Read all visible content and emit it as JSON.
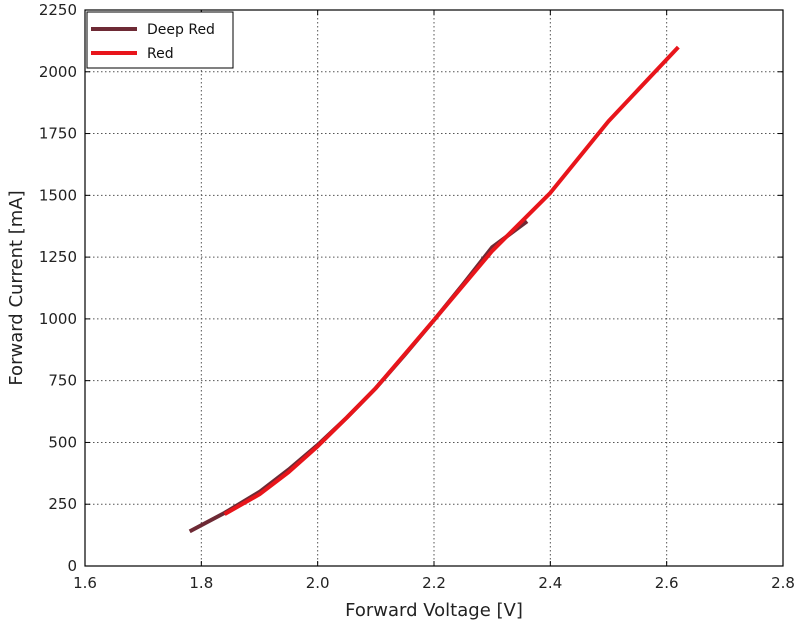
{
  "chart_data": {
    "type": "line",
    "title": "",
    "xlabel": "Forward Voltage [V]",
    "ylabel": "Forward Current [mA]",
    "xlim": [
      1.6,
      2.8
    ],
    "ylim": [
      0,
      2250
    ],
    "xticks": [
      1.6,
      1.8,
      2.0,
      2.2,
      2.4,
      2.6,
      2.8
    ],
    "xtick_labels": [
      "1.6",
      "1.8",
      "2.0",
      "2.2",
      "2.4",
      "2.6",
      "2.8"
    ],
    "yticks": [
      0,
      250,
      500,
      750,
      1000,
      1250,
      1500,
      1750,
      2000,
      2250
    ],
    "ytick_labels": [
      "0",
      "250",
      "500",
      "750",
      "1000",
      "1250",
      "1500",
      "1750",
      "2000",
      "2250"
    ],
    "grid": true,
    "legend_position": "top-left",
    "series": [
      {
        "name": "Deep Red",
        "color": "#6e2a35",
        "x": [
          1.78,
          1.84,
          1.9,
          1.95,
          2.0,
          2.05,
          2.1,
          2.15,
          2.2,
          2.25,
          2.3,
          2.36
        ],
        "y": [
          140,
          215,
          300,
          390,
          490,
          600,
          720,
          855,
          995,
          1140,
          1290,
          1395
        ]
      },
      {
        "name": "Red",
        "color": "#e8151b",
        "x": [
          1.84,
          1.9,
          1.95,
          2.0,
          2.05,
          2.1,
          2.2,
          2.3,
          2.4,
          2.5,
          2.62
        ],
        "y": [
          210,
          290,
          380,
          485,
          600,
          720,
          995,
          1275,
          1510,
          1800,
          2100
        ]
      }
    ]
  }
}
